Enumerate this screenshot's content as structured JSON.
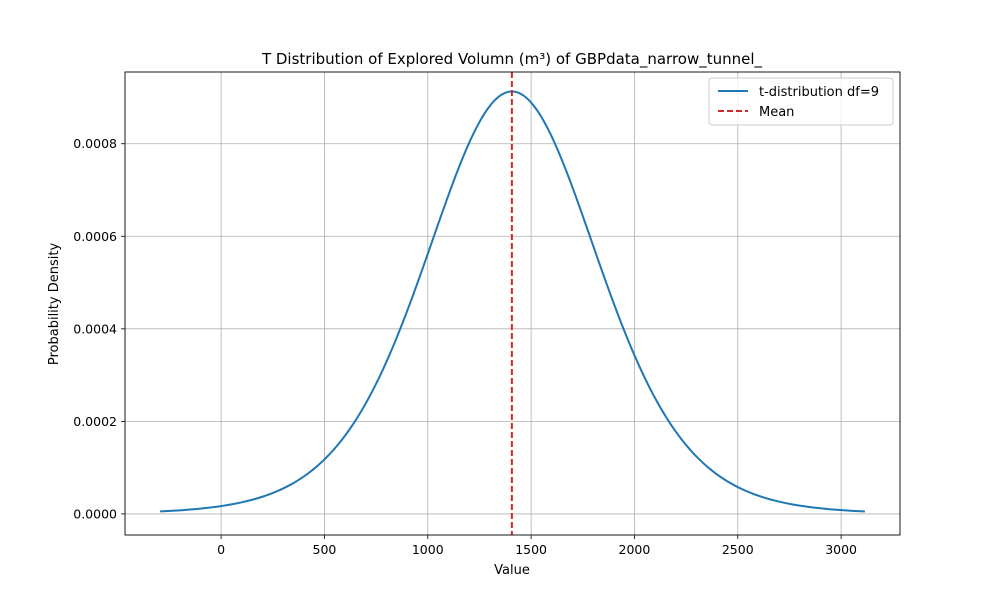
{
  "chart_data": {
    "type": "line",
    "title": "T Distribution of Explored Volumn (m³) of GBPdata_narrow_tunnel_",
    "xlabel": "Value",
    "ylabel": "Probability Density",
    "xlim": [
      -465,
      3285
    ],
    "ylim": [
      -4.55e-05,
      0.000955
    ],
    "x_ticks": [
      0,
      500,
      1000,
      1500,
      2000,
      2500,
      3000
    ],
    "x_tick_labels": [
      "0",
      "500",
      "1000",
      "1500",
      "2000",
      "2500",
      "3000"
    ],
    "y_ticks": [
      0,
      0.0002,
      0.0004,
      0.0006,
      0.0008
    ],
    "y_tick_labels": [
      "0.0000",
      "0.0002",
      "0.0004",
      "0.0006",
      "0.0008"
    ],
    "grid": true,
    "legend_position": "top-right",
    "series": [
      {
        "name": "t-distribution df=9",
        "color": "#1f77b4",
        "style": "solid",
        "distribution": {
          "df": 9,
          "loc": 1407,
          "scale": 425
        },
        "x_range": [
          -295,
          3115
        ]
      },
      {
        "name": "Mean",
        "color": "#d62728",
        "style": "dashed",
        "x": 1407
      }
    ]
  }
}
